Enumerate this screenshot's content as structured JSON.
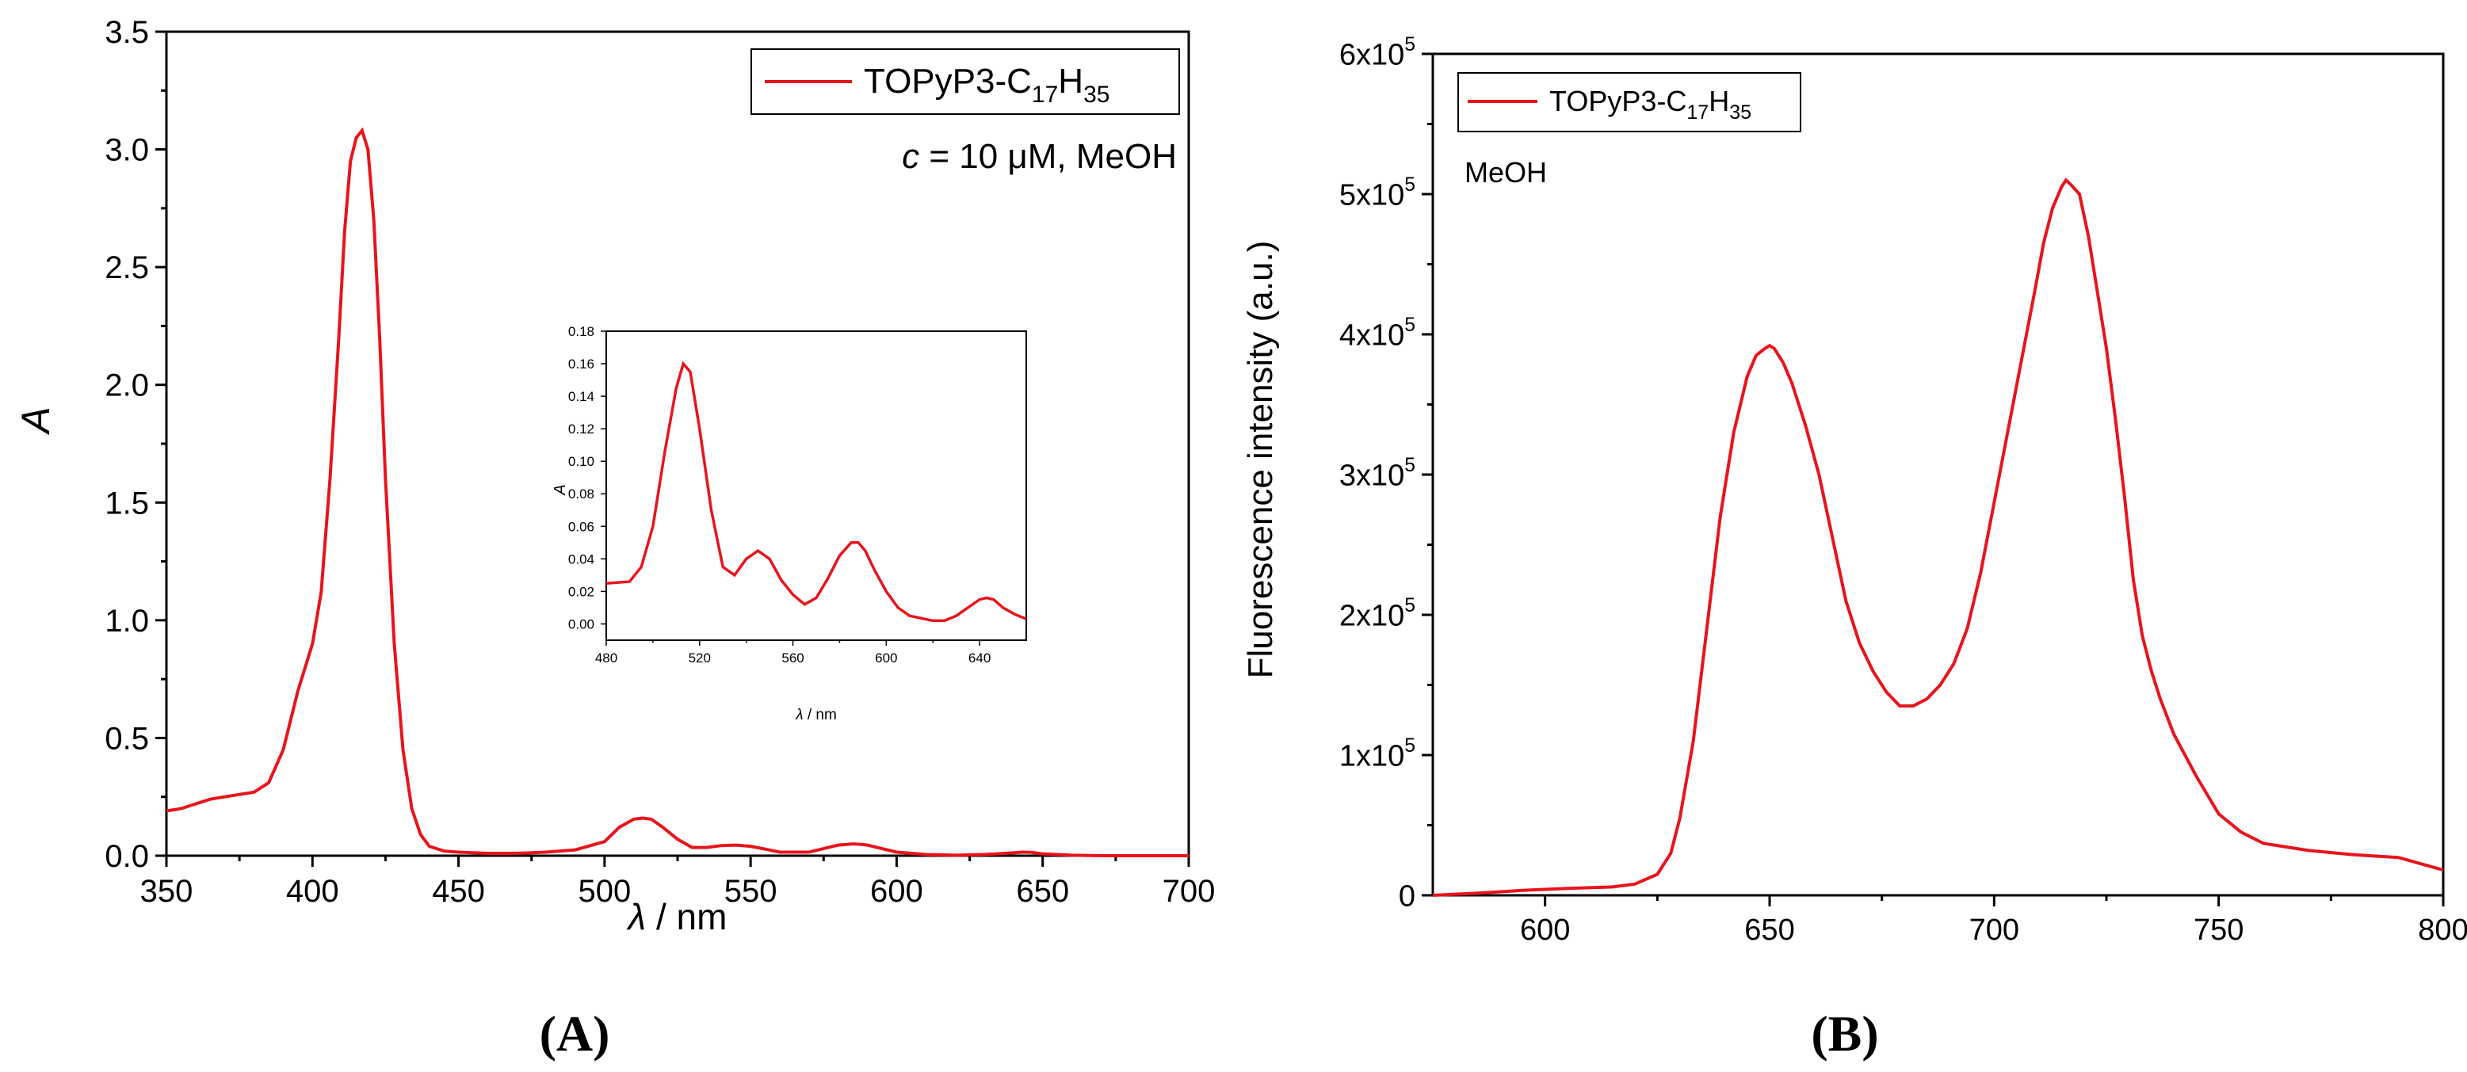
{
  "colors": {
    "series": "#e8141c",
    "axis": "#000000"
  },
  "panels": {
    "a_label": "(A)",
    "b_label": "(B)"
  },
  "chart_data": [
    {
      "id": "A",
      "type": "line",
      "title": "",
      "xlabel_sym": "λ",
      "xlabel_unit": " / nm",
      "ylabel": "A",
      "xlim": [
        350,
        700
      ],
      "ylim": [
        0,
        3.5
      ],
      "xticks": [
        "350",
        "400",
        "450",
        "500",
        "550",
        "600",
        "650",
        "700"
      ],
      "yticks": [
        "0.0",
        "0.5",
        "1.0",
        "1.5",
        "2.0",
        "2.5",
        "3.0",
        "3.5"
      ],
      "legend": {
        "label_main": "TOPyP3-C",
        "sub1": "17",
        "mid": "H",
        "sub2": "35",
        "position": "top-right"
      },
      "annotation": {
        "c_sym": "c",
        "rest": " = 10 μM, MeOH"
      },
      "series": [
        {
          "name": "TOPyP3-C17H35",
          "x": [
            350,
            355,
            360,
            365,
            370,
            375,
            380,
            385,
            390,
            395,
            400,
            403,
            406,
            409,
            411,
            413,
            415,
            417,
            419,
            421,
            423,
            425,
            428,
            431,
            434,
            437,
            440,
            445,
            450,
            460,
            470,
            480,
            490,
            500,
            505,
            510,
            513,
            516,
            520,
            525,
            530,
            535,
            540,
            545,
            550,
            555,
            560,
            570,
            575,
            580,
            585,
            588,
            590,
            595,
            600,
            610,
            620,
            630,
            640,
            643,
            646,
            650,
            660,
            670,
            680,
            690,
            700
          ],
          "y": [
            0.19,
            0.2,
            0.22,
            0.24,
            0.25,
            0.26,
            0.27,
            0.31,
            0.45,
            0.7,
            0.9,
            1.12,
            1.6,
            2.2,
            2.65,
            2.95,
            3.05,
            3.08,
            3.0,
            2.7,
            2.2,
            1.6,
            0.9,
            0.45,
            0.2,
            0.09,
            0.04,
            0.02,
            0.015,
            0.01,
            0.01,
            0.015,
            0.025,
            0.06,
            0.12,
            0.155,
            0.16,
            0.155,
            0.12,
            0.07,
            0.035,
            0.035,
            0.043,
            0.045,
            0.04,
            0.028,
            0.015,
            0.015,
            0.03,
            0.045,
            0.05,
            0.048,
            0.045,
            0.03,
            0.015,
            0.005,
            0.002,
            0.005,
            0.012,
            0.015,
            0.014,
            0.008,
            0.002,
            0.0,
            0.0,
            0.0,
            0.0
          ]
        }
      ]
    },
    {
      "id": "A-inset",
      "type": "line",
      "xlabel_sym": "λ",
      "xlabel_unit": " / nm",
      "ylabel": "A",
      "xlim": [
        480,
        660
      ],
      "ylim": [
        -0.01,
        0.18
      ],
      "xticks": [
        "480",
        "520",
        "560",
        "600",
        "640"
      ],
      "yticks": [
        "0.00",
        "0.02",
        "0.04",
        "0.06",
        "0.08",
        "0.10",
        "0.12",
        "0.14",
        "0.16",
        "0.18"
      ],
      "series": [
        {
          "name": "TOPyP3-C17H35",
          "x": [
            480,
            490,
            495,
            500,
            505,
            510,
            513,
            516,
            520,
            525,
            530,
            535,
            540,
            545,
            550,
            555,
            560,
            565,
            570,
            575,
            580,
            585,
            588,
            591,
            595,
            600,
            605,
            610,
            620,
            625,
            630,
            635,
            640,
            643,
            646,
            650,
            655,
            660
          ],
          "y": [
            0.025,
            0.026,
            0.035,
            0.06,
            0.105,
            0.145,
            0.16,
            0.155,
            0.12,
            0.07,
            0.035,
            0.03,
            0.04,
            0.045,
            0.04,
            0.027,
            0.018,
            0.012,
            0.016,
            0.028,
            0.042,
            0.05,
            0.05,
            0.045,
            0.033,
            0.02,
            0.01,
            0.005,
            0.002,
            0.002,
            0.005,
            0.01,
            0.015,
            0.016,
            0.015,
            0.01,
            0.006,
            0.003
          ]
        }
      ]
    },
    {
      "id": "B",
      "type": "line",
      "xlabel": "",
      "ylabel": "Fluorescence intensity (a.u.)",
      "xlim": [
        575,
        800
      ],
      "ylim": [
        0,
        600000
      ],
      "xticks": [
        "600",
        "650",
        "700",
        "750",
        "800"
      ],
      "yticks": [
        {
          "base": "0",
          "exp": ""
        },
        {
          "base": "1x10",
          "exp": "5"
        },
        {
          "base": "2x10",
          "exp": "5"
        },
        {
          "base": "3x10",
          "exp": "5"
        },
        {
          "base": "4x10",
          "exp": "5"
        },
        {
          "base": "5x10",
          "exp": "5"
        },
        {
          "base": "6x10",
          "exp": "5"
        }
      ],
      "legend": {
        "label_main": "TOPyP3-C",
        "sub1": "17",
        "mid": "H",
        "sub2": "35",
        "position": "top-left"
      },
      "annotation": {
        "text": "MeOH"
      },
      "series": [
        {
          "name": "TOPyP3-C17H35",
          "x": [
            575,
            585,
            595,
            605,
            615,
            620,
            625,
            628,
            630,
            633,
            636,
            639,
            642,
            645,
            647,
            649,
            650,
            651,
            653,
            655,
            658,
            661,
            664,
            667,
            670,
            673,
            676,
            679,
            682,
            685,
            688,
            691,
            694,
            697,
            700,
            703,
            706,
            709,
            711,
            713,
            715,
            716,
            717,
            719,
            721,
            723,
            725,
            727,
            729,
            731,
            733,
            735,
            737,
            740,
            745,
            750,
            755,
            760,
            770,
            780,
            790,
            800
          ],
          "y": [
            0,
            1500,
            3500,
            5000,
            6000,
            8000,
            15000,
            30000,
            55000,
            110000,
            190000,
            270000,
            330000,
            370000,
            385000,
            390000,
            392000,
            390000,
            380000,
            365000,
            335000,
            300000,
            255000,
            210000,
            180000,
            160000,
            145000,
            135000,
            135000,
            140000,
            150000,
            165000,
            190000,
            230000,
            280000,
            330000,
            380000,
            430000,
            465000,
            490000,
            505000,
            510000,
            507000,
            500000,
            470000,
            430000,
            390000,
            340000,
            285000,
            225000,
            185000,
            160000,
            140000,
            115000,
            85000,
            58000,
            45000,
            37000,
            32000,
            29000,
            27000,
            18000
          ]
        }
      ]
    }
  ]
}
